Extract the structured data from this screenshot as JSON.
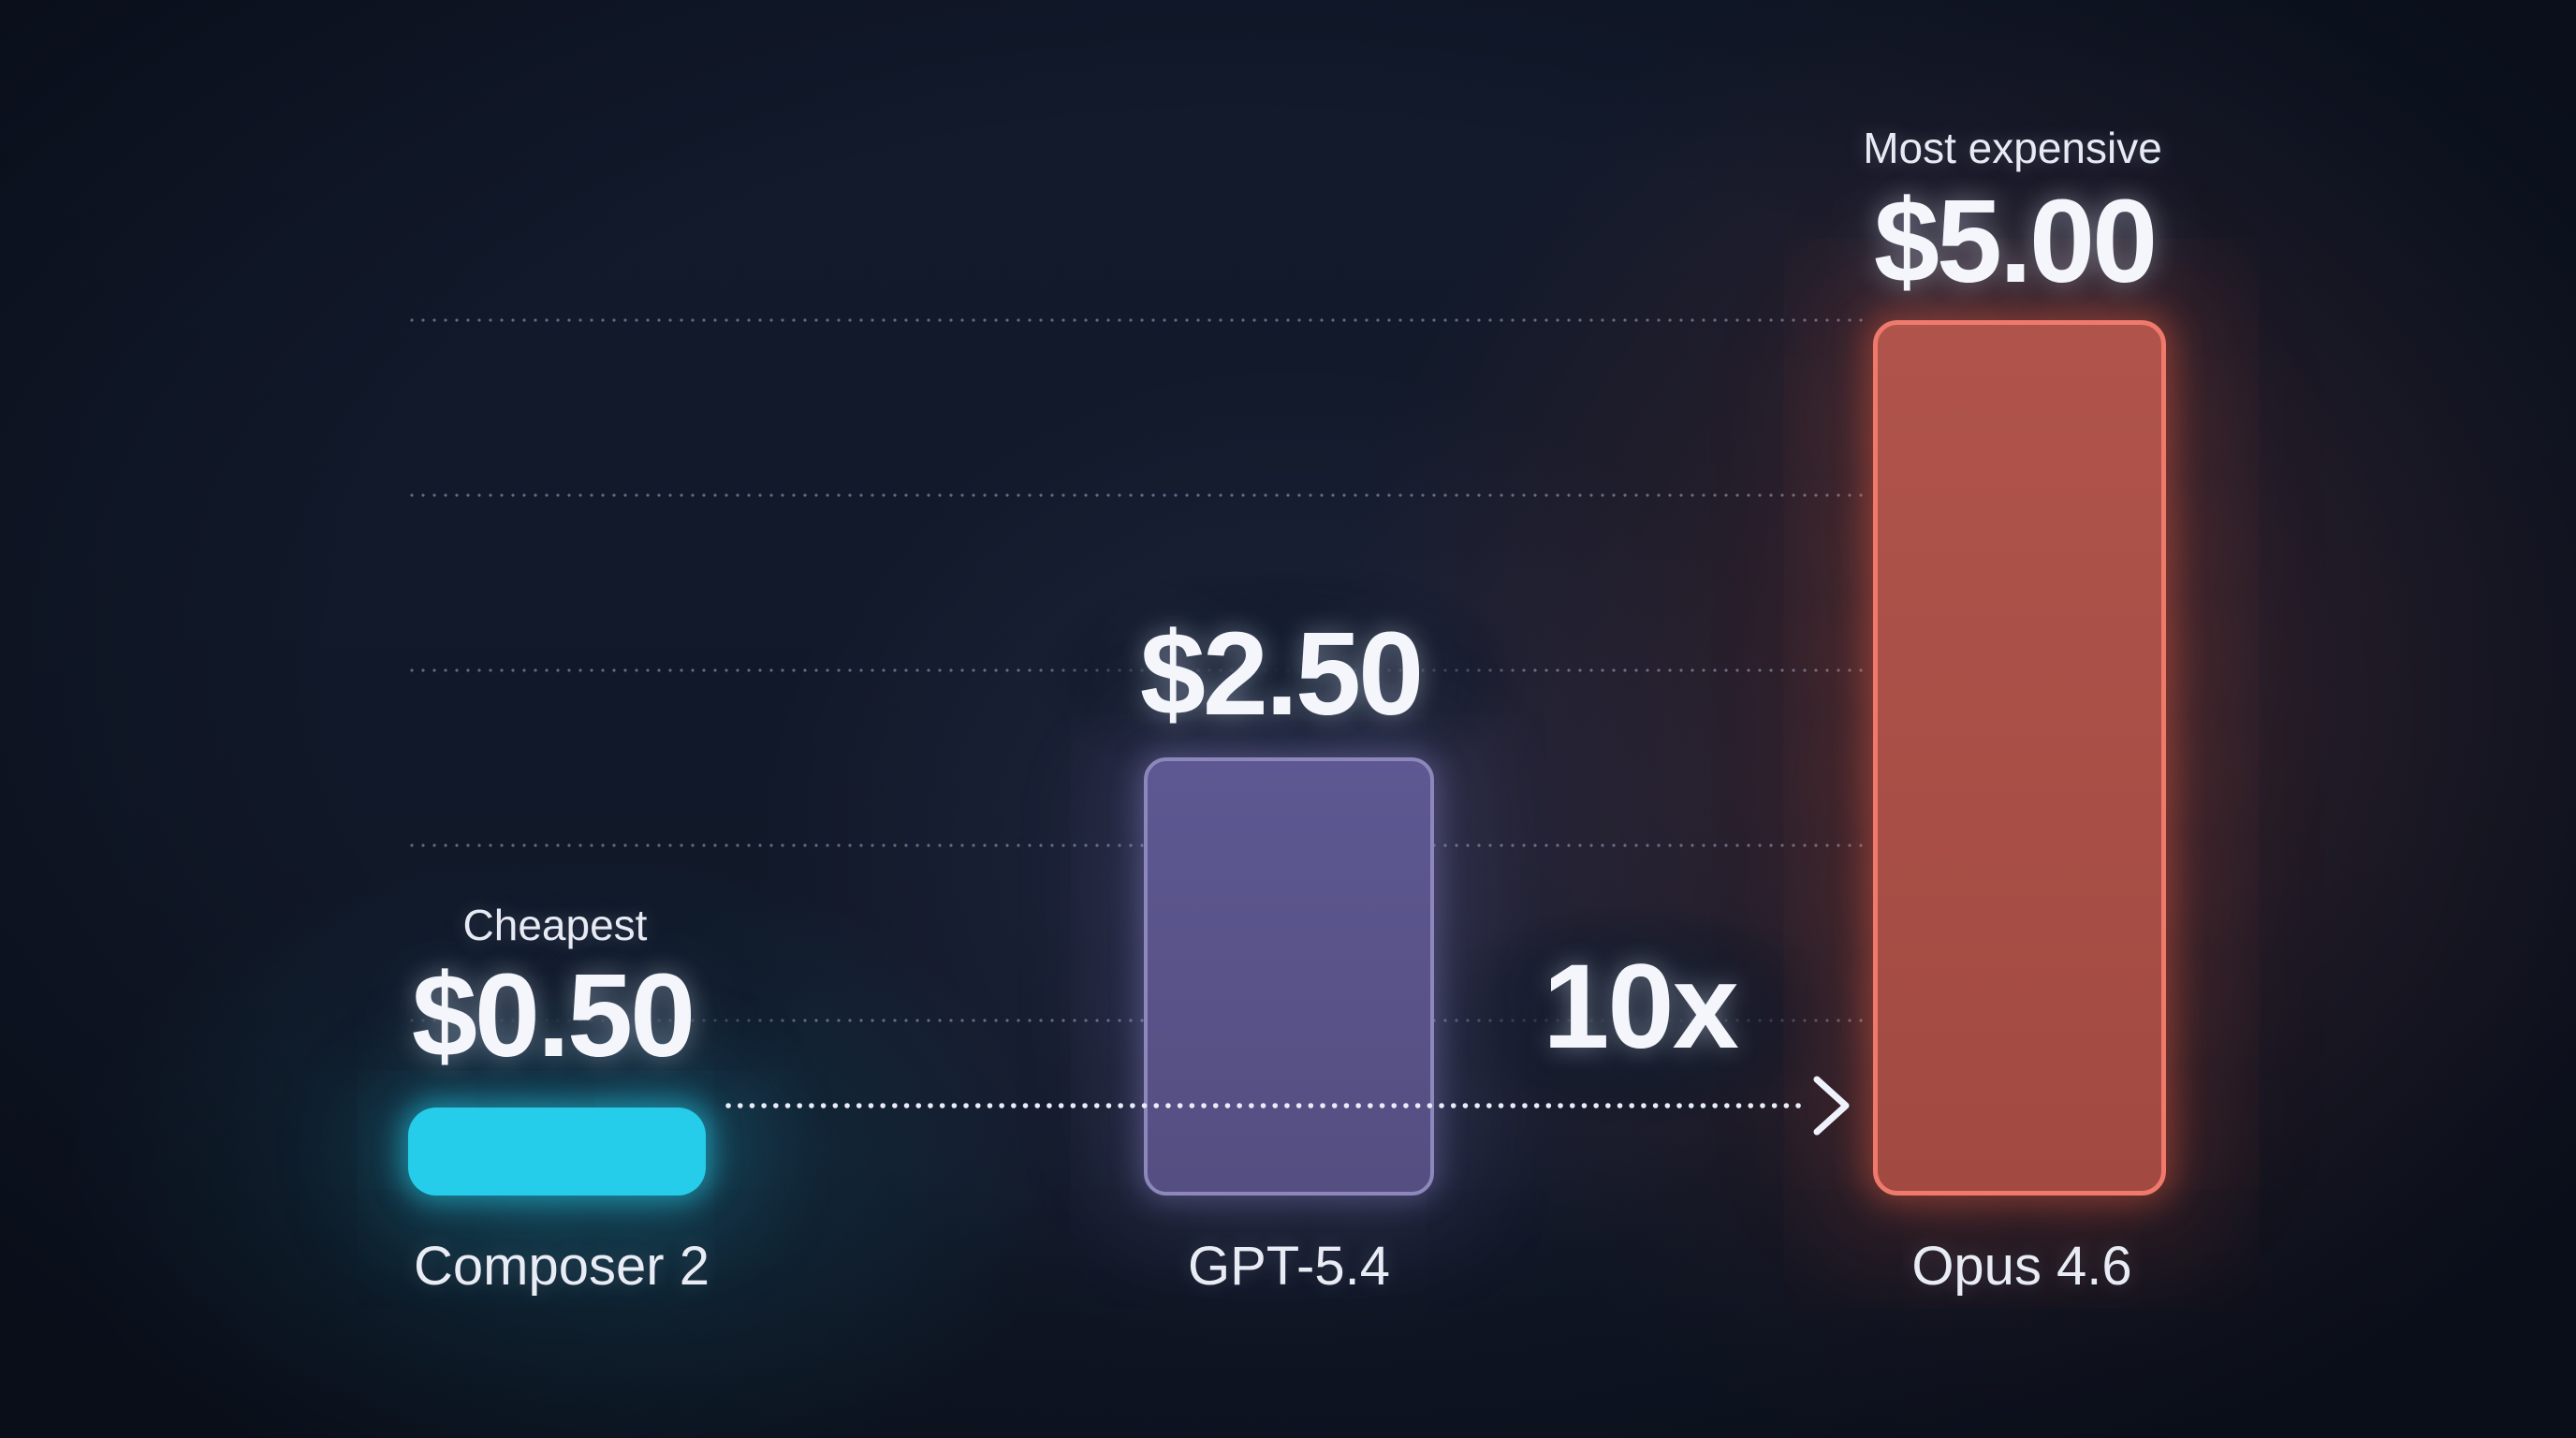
{
  "chart_data": {
    "type": "bar",
    "title": "",
    "categories": [
      "Composer 2",
      "GPT-5.4",
      "Opus 4.6"
    ],
    "values": [
      0.5,
      2.5,
      5.0
    ],
    "value_labels": [
      "$0.50",
      "$2.50",
      "$5.00"
    ],
    "tags": [
      "Cheapest",
      "",
      "Most expensive"
    ],
    "annotation": {
      "label": "10x",
      "from": "Composer 2",
      "to": "Opus 4.6",
      "style": "dotted-arrow"
    },
    "ylim": [
      0,
      5.35
    ],
    "gridline_values": [
      1,
      2,
      3,
      4,
      5
    ],
    "grid": "dotted-horizontal",
    "legend": "none",
    "colors": {
      "background": "#111827",
      "bar_fills": [
        "#26cdea",
        "#575086",
        "#a64c44"
      ],
      "bar_borders": [
        "#26cdea",
        "#8d87bb",
        "#ef7a6c"
      ],
      "text_primary": "#f4f6fb",
      "text_secondary": "#e8ebf4",
      "gridline_dots": "#a2acca",
      "arrow_dots": "#e9ecfa"
    }
  }
}
